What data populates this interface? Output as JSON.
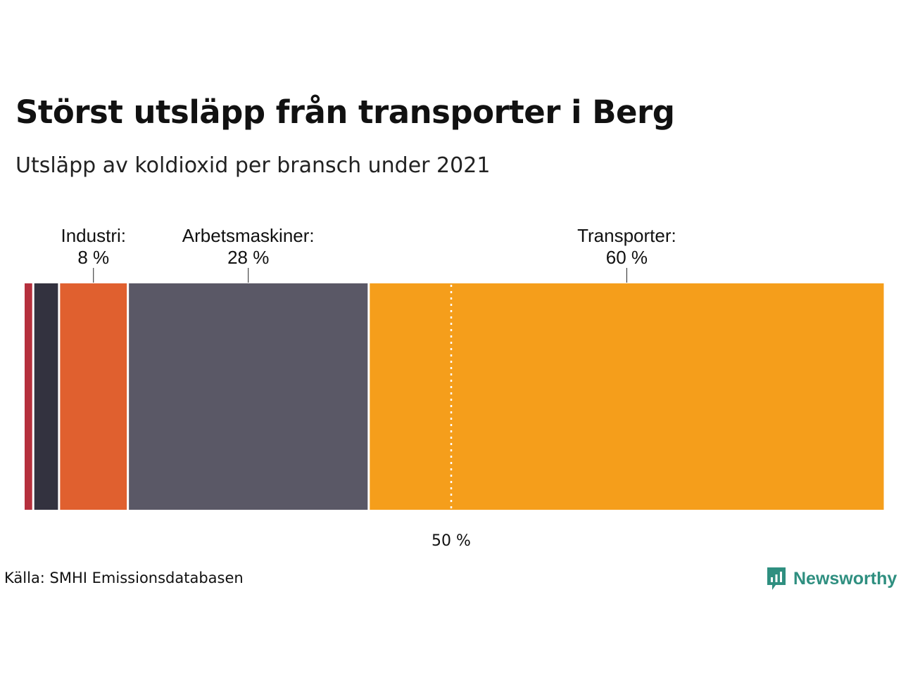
{
  "header": {
    "title": "Störst utsläpp från transporter i Berg",
    "subtitle": "Utsläpp av koldioxid per bransch under 2021"
  },
  "footer": {
    "source": "Källa: SMHI Emissionsdatabasen",
    "brand": "Newsworthy"
  },
  "chart_data": {
    "type": "bar",
    "orientation": "horizontal-stacked-100",
    "title": "Störst utsläpp från transporter i Berg",
    "subtitle": "Utsläpp av koldioxid per bransch under 2021",
    "unit": "%",
    "xlim": [
      0,
      100
    ],
    "series": [
      {
        "value": 1,
        "color": "#b5303d"
      },
      {
        "value": 3,
        "color": "#33323f"
      },
      {
        "name": "Industri",
        "label": "Industri:",
        "value_label": "8 %",
        "value": 8,
        "color": "#e0602f"
      },
      {
        "name": "Arbetsmaskiner",
        "label": "Arbetsmaskiner:",
        "value_label": "28 %",
        "value": 28,
        "color": "#5a5866"
      },
      {
        "name": "Transporter",
        "label": "Transporter:",
        "value_label": "60 %",
        "value": 60,
        "color": "#f59e1b"
      }
    ],
    "reference_line": {
      "value": 50,
      "label": "50 %",
      "style": "dotted",
      "color": "#ffffff"
    },
    "grid": false,
    "legend": "labels above segments"
  }
}
